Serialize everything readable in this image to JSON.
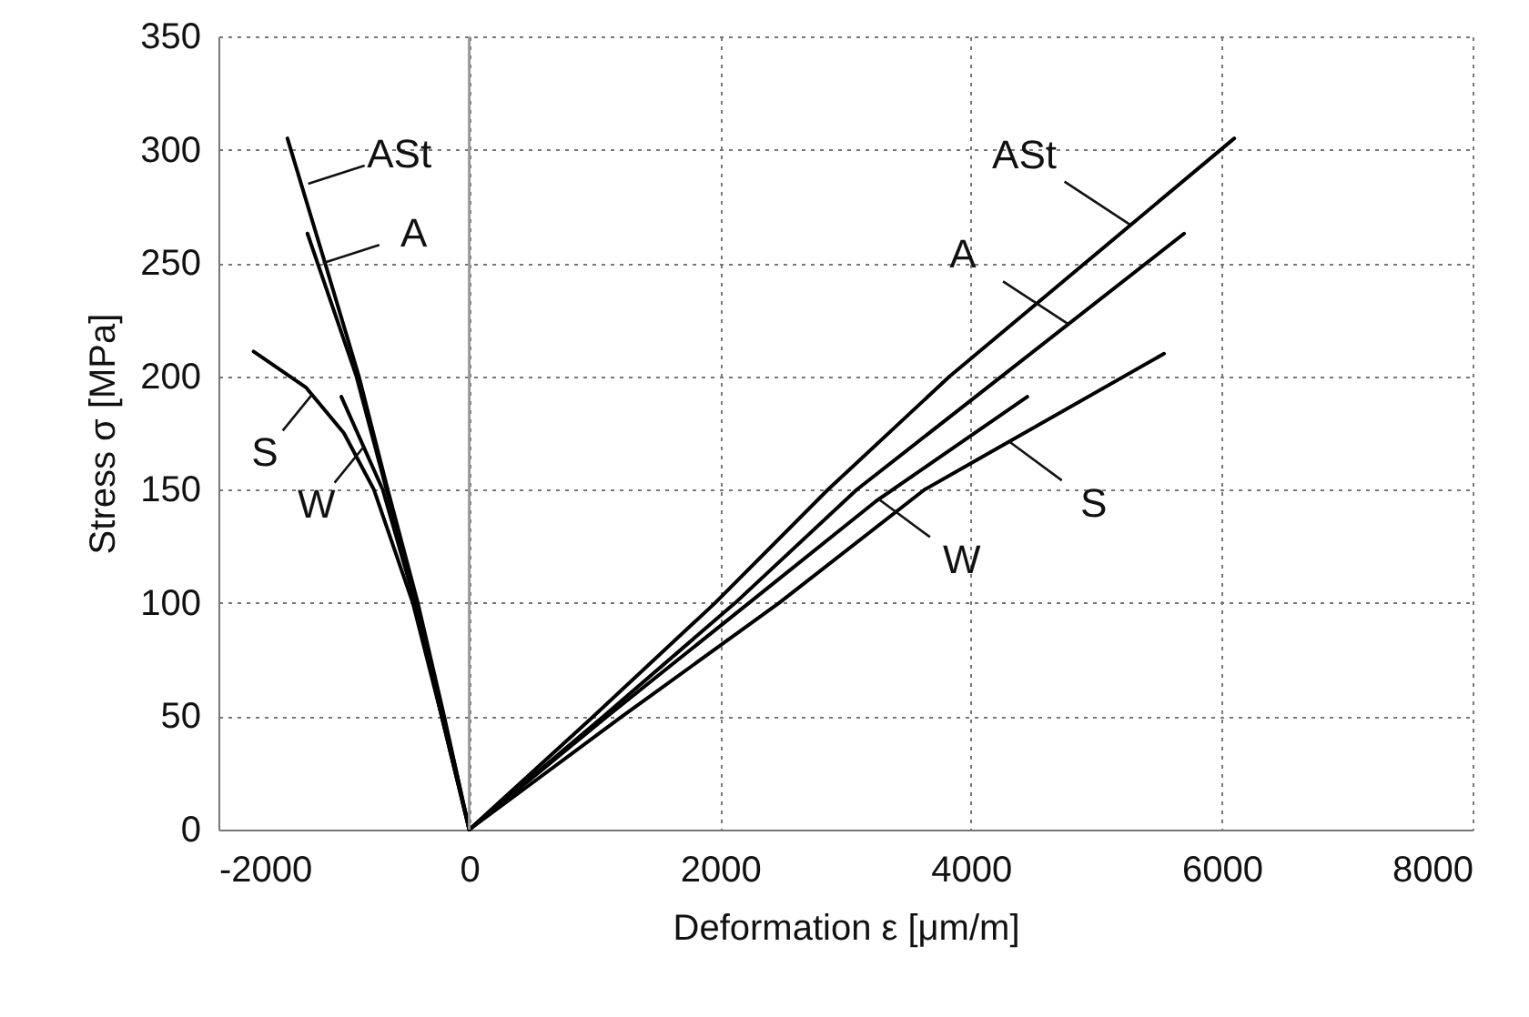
{
  "chart_data": {
    "type": "line",
    "xlabel": "Deformation ε [μm/m]",
    "ylabel": "Stress σ [MPa]",
    "xlim": [
      -2000,
      8000
    ],
    "xticks": [
      {
        "value": -2000,
        "label": "-2000"
      },
      0,
      {
        "value": 2000,
        "label": "2000"
      },
      {
        "value": 4000,
        "label": "4000"
      },
      {
        "value": 6000,
        "label": "6000"
      },
      {
        "value": 8000,
        "label": "8000"
      }
    ],
    "ylim": [
      0,
      350
    ],
    "yticks": [
      0,
      50,
      100,
      150,
      200,
      250,
      300,
      350
    ],
    "grid": true,
    "line_style": "solid",
    "series": [
      {
        "color": "#000000",
        "x": [
          -1450,
          -1150,
          -880,
          -650,
          -410,
          -200,
          0,
          990,
          1960,
          2860,
          3830,
          6100
        ],
        "values": [
          305,
          250,
          200,
          150,
          100,
          50,
          0,
          50,
          100,
          150,
          200,
          305
        ]
      },
      {
        "color": "#000000",
        "x": [
          -1290,
          -900,
          -660,
          -420,
          -205,
          0,
          1070,
          2120,
          3090,
          5700
        ],
        "values": [
          263,
          200,
          150,
          100,
          50,
          0,
          50,
          100,
          150,
          263
        ]
      },
      {
        "color": "#000000",
        "x": [
          -1720,
          -1300,
          -1000,
          -760,
          -450,
          -220,
          0,
          1220,
          2470,
          3630,
          5540
        ],
        "values": [
          211,
          195,
          175,
          150,
          100,
          50,
          0,
          50,
          100,
          150,
          210
        ]
      },
      {
        "color": "#000000",
        "x": [
          -1020,
          -690,
          -430,
          -220,
          0,
          1100,
          2230,
          3245,
          4450
        ],
        "values": [
          191,
          150,
          100,
          50,
          0,
          50,
          100,
          145,
          191
        ]
      }
    ],
    "ref_lines": [
      {
        "axis": "x",
        "value": 0,
        "color": "#999999"
      }
    ],
    "annotations": [
      {
        "text": "ASt",
        "x": -1284,
        "y": 285
      },
      {
        "text": "A",
        "x": -1167,
        "y": 250
      },
      {
        "text": "S",
        "x": -1253,
        "y": 192
      },
      {
        "text": "W",
        "x": -840,
        "y": 169
      },
      {
        "text": "ASt",
        "x": 5268,
        "y": 267
      },
      {
        "text": "A",
        "x": 4778,
        "y": 223
      },
      {
        "text": "S",
        "x": 4311,
        "y": 171
      },
      {
        "text": "W",
        "x": 3260,
        "y": 146
      }
    ]
  }
}
